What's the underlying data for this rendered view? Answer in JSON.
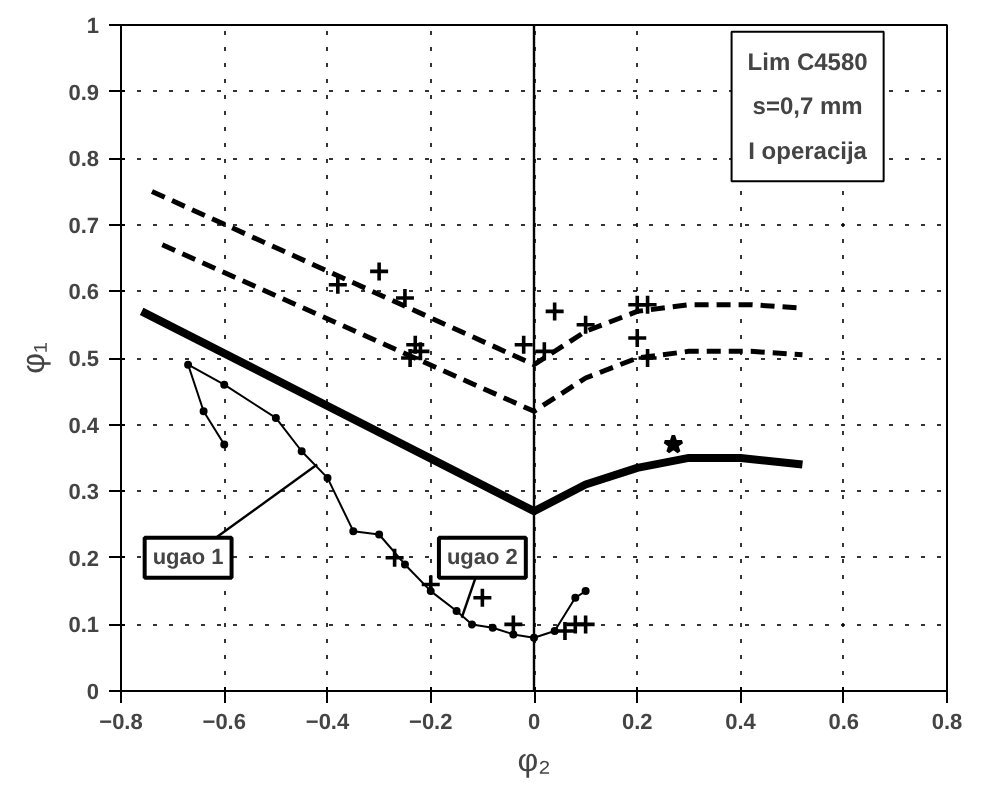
{
  "chart_data": {
    "type": "line",
    "xlabel": "φ₂",
    "ylabel": "φ₁",
    "xlim": [
      -0.8,
      0.8
    ],
    "ylim": [
      0,
      1
    ],
    "xticks": [
      -0.8,
      -0.6,
      -0.4,
      -0.2,
      0,
      0.2,
      0.4,
      0.6,
      0.8
    ],
    "yticks": [
      0,
      0.1,
      0.2,
      0.3,
      0.4,
      0.5,
      0.6,
      0.7,
      0.8,
      0.9,
      1
    ],
    "grid": true,
    "ref_lines": [
      {
        "axis": "x",
        "value": 0,
        "color": "#000000",
        "line_style": "solid"
      }
    ],
    "series": [
      {
        "color": "#000000",
        "line_style": "solid",
        "marker": "none",
        "x": [
          -0.76,
          0,
          0.1,
          0.2,
          0.3,
          0.4,
          0.52
        ],
        "values": [
          0.57,
          0.27,
          0.31,
          0.335,
          0.35,
          0.35,
          0.34
        ]
      },
      {
        "color": "#000000",
        "line_style": "dashed",
        "marker": "none",
        "x": [
          -0.74,
          0,
          0.1,
          0.2,
          0.3,
          0.42,
          0.52
        ],
        "values": [
          0.75,
          0.49,
          0.54,
          0.57,
          0.58,
          0.58,
          0.575
        ]
      },
      {
        "color": "#000000",
        "line_style": "dashed",
        "marker": "none",
        "x": [
          -0.72,
          0,
          0.1,
          0.2,
          0.3,
          0.42,
          0.52
        ],
        "values": [
          0.67,
          0.42,
          0.47,
          0.5,
          0.51,
          0.51,
          0.505
        ]
      },
      {
        "color": "#000000",
        "line_style": "solid",
        "marker": "circle",
        "x": [
          -0.6,
          -0.64,
          -0.67,
          -0.6,
          -0.5,
          -0.45,
          -0.4,
          -0.35,
          -0.3,
          -0.25,
          -0.2,
          -0.15,
          -0.12,
          -0.08,
          -0.04,
          0,
          0.04,
          0.08,
          0.1
        ],
        "values": [
          0.37,
          0.42,
          0.49,
          0.46,
          0.41,
          0.36,
          0.32,
          0.24,
          0.235,
          0.19,
          0.15,
          0.12,
          0.1,
          0.095,
          0.085,
          0.08,
          0.09,
          0.14,
          0.15
        ]
      },
      {
        "type": "scatter",
        "color": "#000000",
        "marker": "cross",
        "x": [
          -0.27,
          -0.2,
          -0.1,
          -0.04,
          0.06,
          0.08,
          0.1
        ],
        "values": [
          0.2,
          0.16,
          0.14,
          0.1,
          0.09,
          0.1,
          0.1
        ]
      },
      {
        "type": "scatter",
        "color": "#000000",
        "marker": "cross",
        "x": [
          -0.38,
          -0.3,
          -0.25,
          -0.23,
          -0.24,
          -0.22,
          -0.02,
          0.02,
          0.04,
          0.1,
          0.2,
          0.22,
          0.2,
          0.22
        ],
        "values": [
          0.61,
          0.63,
          0.59,
          0.52,
          0.5,
          0.51,
          0.52,
          0.51,
          0.57,
          0.55,
          0.58,
          0.58,
          0.53,
          0.5
        ]
      },
      {
        "type": "scatter",
        "color": "#000000",
        "marker": "star",
        "x": [
          0.27
        ],
        "values": [
          0.37
        ]
      }
    ],
    "annotations": [
      {
        "text": "ugao 1",
        "x": -0.42,
        "y": 0.34
      },
      {
        "text": "ugao 2",
        "x": -0.14,
        "y": 0.11
      },
      "Lim C4580",
      "s=0,7 mm",
      "I operacija"
    ]
  }
}
